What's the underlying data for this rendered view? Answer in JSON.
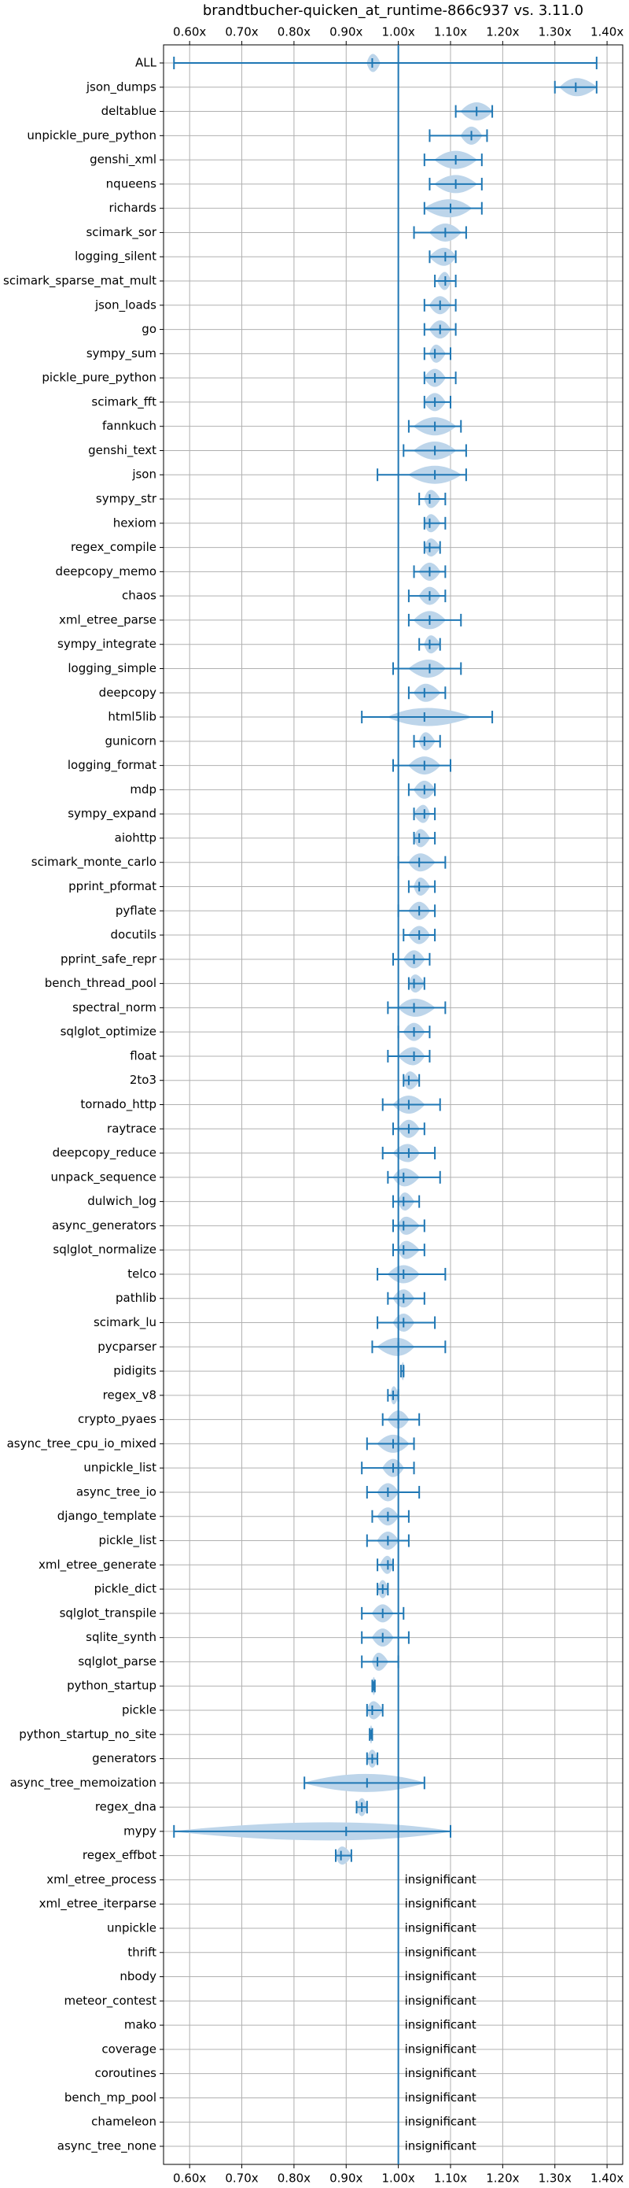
{
  "chart_data": {
    "type": "violin",
    "title": "brandtbucher-quicken_at_runtime-866c937 vs. 3.11.0",
    "categories": [
      "ALL",
      "json_dumps",
      "deltablue",
      "unpickle_pure_python",
      "genshi_xml",
      "nqueens",
      "richards",
      "scimark_sor",
      "logging_silent",
      "scimark_sparse_mat_mult",
      "json_loads",
      "go",
      "sympy_sum",
      "pickle_pure_python",
      "scimark_fft",
      "fannkuch",
      "genshi_text",
      "json",
      "sympy_str",
      "hexiom",
      "regex_compile",
      "deepcopy_memo",
      "chaos",
      "xml_etree_parse",
      "sympy_integrate",
      "logging_simple",
      "deepcopy",
      "html5lib",
      "gunicorn",
      "logging_format",
      "mdp",
      "sympy_expand",
      "aiohttp",
      "scimark_monte_carlo",
      "pprint_pformat",
      "pyflate",
      "docutils",
      "pprint_safe_repr",
      "bench_thread_pool",
      "spectral_norm",
      "sqlglot_optimize",
      "float",
      "2to3",
      "tornado_http",
      "raytrace",
      "deepcopy_reduce",
      "unpack_sequence",
      "dulwich_log",
      "async_generators",
      "sqlglot_normalize",
      "telco",
      "pathlib",
      "scimark_lu",
      "pycparser",
      "pidigits",
      "regex_v8",
      "crypto_pyaes",
      "async_tree_cpu_io_mixed",
      "unpickle_list",
      "async_tree_io",
      "django_template",
      "pickle_list",
      "xml_etree_generate",
      "pickle_dict",
      "sqlglot_transpile",
      "sqlite_synth",
      "sqlglot_parse",
      "python_startup",
      "pickle",
      "python_startup_no_site",
      "generators",
      "async_tree_memoization",
      "regex_dna",
      "mypy",
      "regex_effbot",
      "xml_etree_process",
      "xml_etree_iterparse",
      "unpickle",
      "thrift",
      "nbody",
      "meteor_contest",
      "mako",
      "coverage",
      "coroutines",
      "bench_mp_pool",
      "chameleon",
      "async_tree_none"
    ],
    "min": [
      0.57,
      1.3,
      1.11,
      1.06,
      1.05,
      1.06,
      1.05,
      1.03,
      1.06,
      1.07,
      1.05,
      1.05,
      1.05,
      1.05,
      1.05,
      1.02,
      1.01,
      0.96,
      1.04,
      1.05,
      1.05,
      1.03,
      1.02,
      1.02,
      1.04,
      0.99,
      1.02,
      0.93,
      1.03,
      0.99,
      1.02,
      1.03,
      1.03,
      1.0,
      1.02,
      1.0,
      1.01,
      0.99,
      1.02,
      0.98,
      1.0,
      0.98,
      1.01,
      0.97,
      0.99,
      0.97,
      0.98,
      0.99,
      0.99,
      0.99,
      0.96,
      0.98,
      0.96,
      0.95,
      1.005,
      0.98,
      0.97,
      0.94,
      0.93,
      0.94,
      0.95,
      0.94,
      0.96,
      0.96,
      0.93,
      0.93,
      0.93,
      0.95,
      0.94,
      0.945,
      0.94,
      0.82,
      0.92,
      0.57,
      0.88,
      null,
      null,
      null,
      null,
      null,
      null,
      null,
      null,
      null,
      null,
      null,
      null
    ],
    "max": [
      1.38,
      1.38,
      1.18,
      1.17,
      1.16,
      1.16,
      1.16,
      1.13,
      1.11,
      1.11,
      1.11,
      1.11,
      1.1,
      1.11,
      1.1,
      1.12,
      1.13,
      1.13,
      1.09,
      1.09,
      1.08,
      1.09,
      1.09,
      1.12,
      1.08,
      1.12,
      1.09,
      1.18,
      1.08,
      1.1,
      1.07,
      1.07,
      1.07,
      1.09,
      1.07,
      1.07,
      1.07,
      1.06,
      1.05,
      1.09,
      1.06,
      1.06,
      1.04,
      1.08,
      1.05,
      1.07,
      1.08,
      1.04,
      1.05,
      1.05,
      1.09,
      1.05,
      1.07,
      1.09,
      1.01,
      1.0,
      1.04,
      1.03,
      1.03,
      1.04,
      1.02,
      1.02,
      0.99,
      0.98,
      1.01,
      1.02,
      1.0,
      0.955,
      0.97,
      0.95,
      0.96,
      1.05,
      0.94,
      1.1,
      0.91,
      null,
      null,
      null,
      null,
      null,
      null,
      null,
      null,
      null,
      null,
      null,
      null
    ],
    "mean": [
      0.95,
      1.34,
      1.15,
      1.14,
      1.11,
      1.11,
      1.1,
      1.09,
      1.09,
      1.09,
      1.08,
      1.08,
      1.07,
      1.07,
      1.07,
      1.07,
      1.07,
      1.07,
      1.06,
      1.06,
      1.06,
      1.06,
      1.06,
      1.06,
      1.06,
      1.06,
      1.05,
      1.05,
      1.05,
      1.05,
      1.05,
      1.05,
      1.04,
      1.04,
      1.04,
      1.04,
      1.04,
      1.03,
      1.03,
      1.03,
      1.03,
      1.03,
      1.02,
      1.02,
      1.02,
      1.02,
      1.01,
      1.01,
      1.01,
      1.01,
      1.01,
      1.01,
      1.01,
      1.0,
      1.01,
      0.99,
      1.0,
      0.99,
      0.99,
      0.98,
      0.98,
      0.98,
      0.98,
      0.97,
      0.97,
      0.97,
      0.96,
      0.953,
      0.95,
      0.948,
      0.95,
      0.94,
      0.93,
      0.9,
      0.89,
      null,
      null,
      null,
      null,
      null,
      null,
      null,
      null,
      null,
      null,
      null,
      null
    ],
    "violin_low": [
      0.94,
      1.31,
      1.12,
      1.12,
      1.07,
      1.07,
      1.05,
      1.06,
      1.06,
      1.075,
      1.06,
      1.06,
      1.06,
      1.05,
      1.05,
      1.03,
      1.03,
      1.02,
      1.05,
      1.05,
      1.05,
      1.04,
      1.04,
      1.03,
      1.05,
      1.02,
      1.03,
      0.98,
      1.04,
      1.02,
      1.03,
      1.03,
      1.03,
      1.02,
      1.03,
      1.02,
      1.02,
      1.01,
      1.02,
      1.0,
      1.01,
      1.0,
      1.01,
      0.99,
      1.0,
      0.99,
      0.99,
      1.0,
      1.0,
      1.0,
      0.98,
      0.99,
      0.99,
      0.96,
      1.005,
      0.985,
      0.98,
      0.96,
      0.97,
      0.96,
      0.96,
      0.96,
      0.965,
      0.96,
      0.95,
      0.95,
      0.95,
      0.95,
      0.94,
      0.945,
      0.94,
      0.82,
      0.92,
      0.57,
      0.88,
      null,
      null,
      null,
      null,
      null,
      null,
      null,
      null,
      null,
      null,
      null,
      null
    ],
    "violin_high": [
      0.965,
      1.38,
      1.18,
      1.16,
      1.15,
      1.15,
      1.14,
      1.12,
      1.11,
      1.1,
      1.1,
      1.1,
      1.09,
      1.09,
      1.09,
      1.11,
      1.11,
      1.12,
      1.08,
      1.08,
      1.08,
      1.08,
      1.08,
      1.09,
      1.08,
      1.09,
      1.08,
      1.14,
      1.07,
      1.08,
      1.07,
      1.06,
      1.06,
      1.07,
      1.06,
      1.06,
      1.06,
      1.05,
      1.05,
      1.07,
      1.05,
      1.05,
      1.04,
      1.05,
      1.04,
      1.04,
      1.04,
      1.03,
      1.04,
      1.04,
      1.04,
      1.03,
      1.03,
      1.03,
      1.01,
      1.0,
      1.02,
      1.02,
      1.01,
      1.0,
      1.0,
      1.0,
      0.99,
      0.98,
      0.99,
      0.99,
      0.98,
      0.956,
      0.97,
      0.95,
      0.96,
      1.05,
      0.94,
      1.1,
      0.91,
      null,
      null,
      null,
      null,
      null,
      null,
      null,
      null,
      null,
      null,
      null,
      null
    ],
    "annotations": [
      null,
      null,
      null,
      null,
      null,
      null,
      null,
      null,
      null,
      null,
      null,
      null,
      null,
      null,
      null,
      null,
      null,
      null,
      null,
      null,
      null,
      null,
      null,
      null,
      null,
      null,
      null,
      null,
      null,
      null,
      null,
      null,
      null,
      null,
      null,
      null,
      null,
      null,
      null,
      null,
      null,
      null,
      null,
      null,
      null,
      null,
      null,
      null,
      null,
      null,
      null,
      null,
      null,
      null,
      null,
      null,
      null,
      null,
      null,
      null,
      null,
      null,
      null,
      null,
      null,
      null,
      null,
      null,
      null,
      null,
      null,
      null,
      null,
      null,
      null,
      "insignificant",
      "insignificant",
      "insignificant",
      "insignificant",
      "insignificant",
      "insignificant",
      "insignificant",
      "insignificant",
      "insignificant",
      "insignificant",
      "insignificant",
      "insignificant"
    ],
    "xlim": [
      0.55,
      1.43
    ],
    "xticks": [
      {
        "value": 0.6,
        "label": "0.60x"
      },
      {
        "value": 0.7,
        "label": "0.70x"
      },
      {
        "value": 0.8,
        "label": "0.80x"
      },
      {
        "value": 0.9,
        "label": "0.90x"
      },
      {
        "value": 1.0,
        "label": "1.00x"
      },
      {
        "value": 1.1,
        "label": "1.10x"
      },
      {
        "value": 1.2,
        "label": "1.20x"
      },
      {
        "value": 1.3,
        "label": "1.30x"
      },
      {
        "value": 1.4,
        "label": "1.40x"
      }
    ],
    "reference_x": 1.0,
    "grid": true,
    "color": "#1f77b4",
    "violin_color": "#bdd5ea"
  }
}
